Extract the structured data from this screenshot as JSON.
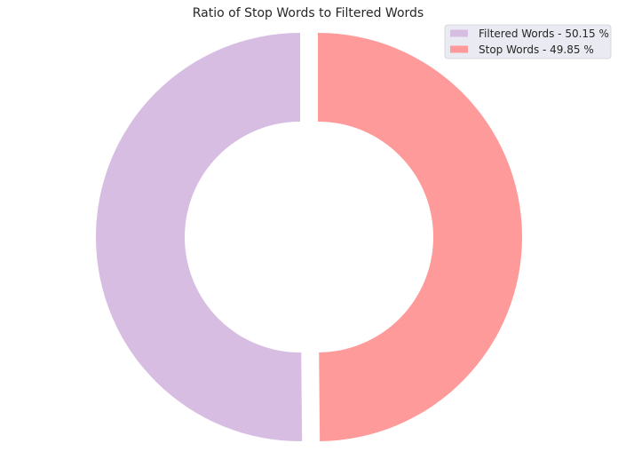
{
  "chart_data": {
    "type": "pie",
    "donut": true,
    "title": "Ratio of Stop Words to Filtered Words",
    "slices": [
      {
        "label": "Filtered Words - 50.15 %",
        "value": 50.15,
        "color": "#d8bde2"
      },
      {
        "label": "Stop Words - 49.85 %",
        "value": 49.85,
        "color": "#ff9a9a"
      }
    ],
    "start_angle_deg": 90,
    "direction": "counterclockwise",
    "exploded": true,
    "legend": {
      "position": "top-right",
      "background": "#eaeaf2"
    }
  }
}
